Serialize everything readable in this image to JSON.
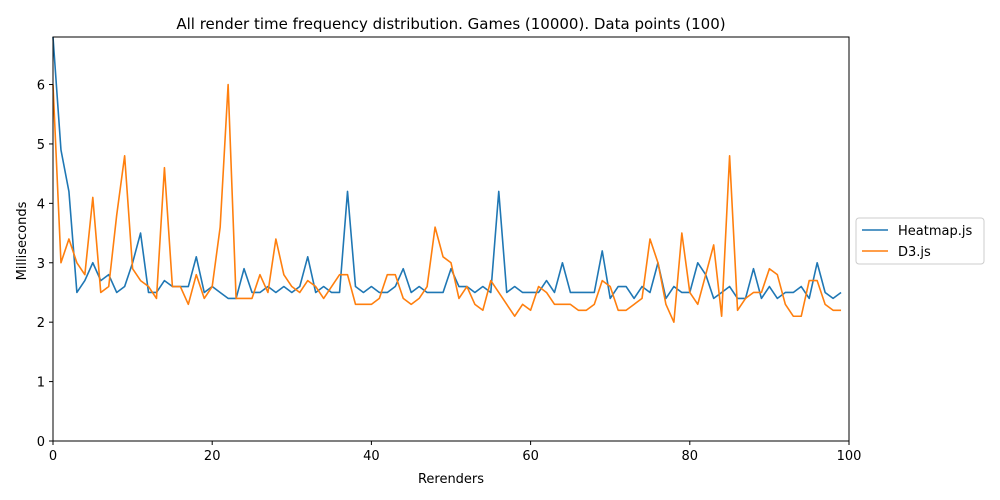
{
  "chart_data": {
    "type": "line",
    "title": "All render time frequency distribution. Games (10000). Data points (100)",
    "xlabel": "Rerenders",
    "ylabel": "Milliseconds",
    "xlim": [
      0,
      100
    ],
    "ylim": [
      0,
      6.8
    ],
    "x_ticks": [
      0,
      20,
      40,
      60,
      80,
      100
    ],
    "y_ticks": [
      0,
      1,
      2,
      3,
      4,
      5,
      6
    ],
    "grid": false,
    "legend_position": "center-right outside",
    "series": [
      {
        "name": "Heatmap.js",
        "color": "#1f77b4",
        "values": [
          6.8,
          4.9,
          4.2,
          2.5,
          2.7,
          3.0,
          2.7,
          2.8,
          2.5,
          2.6,
          3.0,
          3.5,
          2.5,
          2.5,
          2.7,
          2.6,
          2.6,
          2.6,
          3.1,
          2.5,
          2.6,
          2.5,
          2.4,
          2.4,
          2.9,
          2.5,
          2.5,
          2.6,
          2.5,
          2.6,
          2.5,
          2.6,
          3.1,
          2.5,
          2.6,
          2.5,
          2.5,
          4.2,
          2.6,
          2.5,
          2.6,
          2.5,
          2.5,
          2.6,
          2.9,
          2.5,
          2.6,
          2.5,
          2.5,
          2.5,
          2.9,
          2.6,
          2.6,
          2.5,
          2.6,
          2.5,
          4.2,
          2.5,
          2.6,
          2.5,
          2.5,
          2.5,
          2.7,
          2.5,
          3.0,
          2.5,
          2.5,
          2.5,
          2.5,
          3.2,
          2.4,
          2.6,
          2.6,
          2.4,
          2.6,
          2.5,
          3.0,
          2.4,
          2.6,
          2.5,
          2.5,
          3.0,
          2.8,
          2.4,
          2.5,
          2.6,
          2.4,
          2.4,
          2.9,
          2.4,
          2.6,
          2.4,
          2.5,
          2.5,
          2.6,
          2.4,
          3.0,
          2.5,
          2.4,
          2.5
        ]
      },
      {
        "name": "D3.js",
        "color": "#ff7f0e",
        "values": [
          6.0,
          3.0,
          3.4,
          3.0,
          2.8,
          4.1,
          2.5,
          2.6,
          3.8,
          4.8,
          2.9,
          2.7,
          2.6,
          2.4,
          4.6,
          2.6,
          2.6,
          2.3,
          2.8,
          2.4,
          2.6,
          3.6,
          6.0,
          2.4,
          2.4,
          2.4,
          2.8,
          2.5,
          3.4,
          2.8,
          2.6,
          2.5,
          2.7,
          2.6,
          2.4,
          2.6,
          2.8,
          2.8,
          2.3,
          2.3,
          2.3,
          2.4,
          2.8,
          2.8,
          2.4,
          2.3,
          2.4,
          2.6,
          3.6,
          3.1,
          3.0,
          2.4,
          2.6,
          2.3,
          2.2,
          2.7,
          2.5,
          2.3,
          2.1,
          2.3,
          2.2,
          2.6,
          2.5,
          2.3,
          2.3,
          2.3,
          2.2,
          2.2,
          2.3,
          2.7,
          2.6,
          2.2,
          2.2,
          2.3,
          2.4,
          3.4,
          3.0,
          2.3,
          2.0,
          3.5,
          2.5,
          2.3,
          2.8,
          3.3,
          2.1,
          4.8,
          2.2,
          2.4,
          2.5,
          2.5,
          2.9,
          2.8,
          2.3,
          2.1,
          2.1,
          2.7,
          2.7,
          2.3,
          2.2,
          2.2
        ]
      }
    ]
  }
}
